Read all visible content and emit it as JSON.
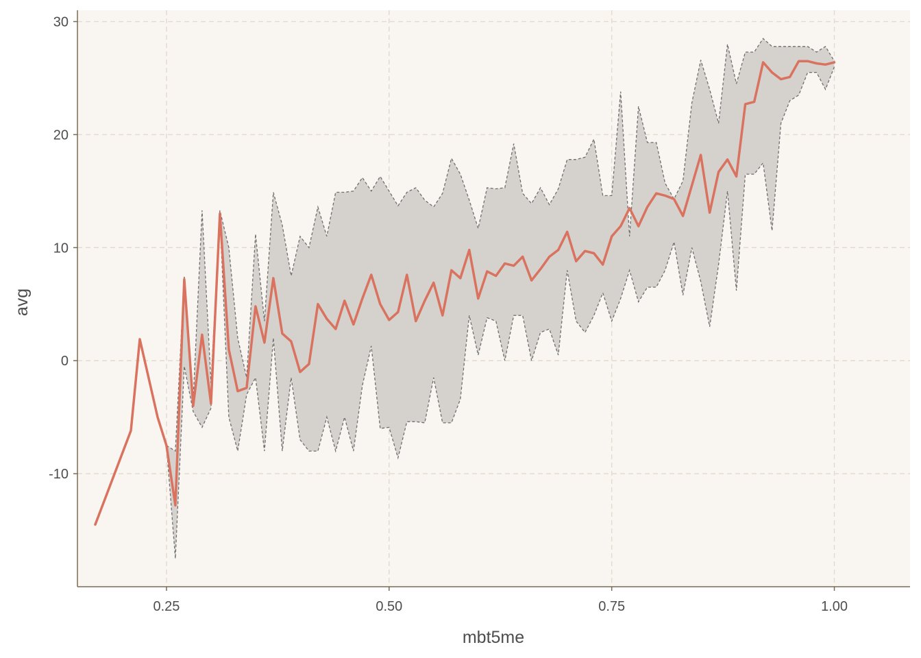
{
  "chart_data": {
    "type": "line",
    "xlabel": "mbt5me",
    "ylabel": "avg",
    "xlim": [
      0.15,
      1.085
    ],
    "ylim": [
      -20,
      31
    ],
    "x_ticks": [
      0.25,
      0.5,
      0.75,
      1.0
    ],
    "x_tick_labels": [
      "0.25",
      "0.50",
      "0.75",
      "1.00"
    ],
    "y_ticks": [
      -10,
      0,
      10,
      20,
      30
    ],
    "y_tick_labels": [
      "-10",
      "0",
      "10",
      "20",
      "30"
    ],
    "grid": true,
    "colors": {
      "line": "#D9725E",
      "band_fill": "#D5D2CE",
      "band_edge": "#6E6E6E",
      "panel_bg": "#F9F6F2",
      "grid": "#E3DBD0",
      "axis": "#7A6A58"
    },
    "series": [
      {
        "x": [
          0.17,
          0.21,
          0.22,
          0.24,
          0.25,
          0.26,
          0.27,
          0.28,
          0.29,
          0.3,
          0.31,
          0.32,
          0.33,
          0.34,
          0.35,
          0.36,
          0.37,
          0.38,
          0.39,
          0.4,
          0.41,
          0.42,
          0.43,
          0.44,
          0.45,
          0.46,
          0.47,
          0.48,
          0.49,
          0.5,
          0.51,
          0.52,
          0.53,
          0.54,
          0.55,
          0.56,
          0.57,
          0.58,
          0.59,
          0.6,
          0.61,
          0.62,
          0.63,
          0.64,
          0.65,
          0.66,
          0.67,
          0.68,
          0.69,
          0.7,
          0.71,
          0.72,
          0.73,
          0.74,
          0.75,
          0.76,
          0.77,
          0.78,
          0.79,
          0.8,
          0.81,
          0.82,
          0.83,
          0.84,
          0.85,
          0.86,
          0.87,
          0.88,
          0.89,
          0.9,
          0.91,
          0.92,
          0.93,
          0.94,
          0.95,
          0.96,
          0.97,
          0.98,
          0.99,
          1.0
        ],
        "values": [
          -14.5,
          -6.2,
          1.9,
          -5.0,
          -7.5,
          -12.8,
          7.2,
          -4.0,
          2.3,
          -3.8,
          13.0,
          1.0,
          -2.7,
          -2.4,
          4.8,
          1.6,
          7.3,
          2.4,
          1.7,
          -1.0,
          -0.3,
          5.0,
          3.7,
          2.8,
          5.3,
          3.2,
          5.5,
          7.6,
          5.0,
          3.6,
          4.3,
          7.6,
          3.5,
          5.3,
          6.9,
          4.0,
          8.0,
          7.3,
          9.8,
          5.5,
          7.9,
          7.5,
          8.6,
          8.4,
          9.2,
          7.1,
          8.1,
          9.2,
          9.8,
          11.4,
          8.8,
          9.7,
          9.5,
          8.5,
          11.0,
          11.9,
          13.5,
          11.9,
          13.6,
          14.8,
          14.6,
          14.3,
          12.8,
          15.5,
          18.2,
          13.1,
          16.7,
          17.8,
          16.3,
          22.7,
          22.9,
          26.4,
          25.5,
          24.9,
          25.1,
          26.5,
          26.5,
          26.3,
          26.2,
          26.4
        ]
      }
    ],
    "band": {
      "x": [
        0.25,
        0.26,
        0.27,
        0.28,
        0.29,
        0.3,
        0.31,
        0.32,
        0.33,
        0.34,
        0.35,
        0.36,
        0.37,
        0.38,
        0.39,
        0.4,
        0.41,
        0.42,
        0.43,
        0.44,
        0.45,
        0.46,
        0.47,
        0.48,
        0.49,
        0.5,
        0.51,
        0.52,
        0.53,
        0.54,
        0.55,
        0.56,
        0.57,
        0.58,
        0.59,
        0.6,
        0.61,
        0.62,
        0.63,
        0.64,
        0.65,
        0.66,
        0.67,
        0.68,
        0.69,
        0.7,
        0.71,
        0.72,
        0.73,
        0.74,
        0.75,
        0.76,
        0.77,
        0.78,
        0.79,
        0.8,
        0.81,
        0.82,
        0.83,
        0.84,
        0.85,
        0.86,
        0.87,
        0.88,
        0.89,
        0.9,
        0.91,
        0.92,
        0.93,
        0.94,
        0.95,
        0.96,
        0.97,
        0.98,
        0.99,
        1.0
      ],
      "upper": [
        -7.5,
        -8.0,
        7.5,
        -3.5,
        13.3,
        -2.0,
        13.3,
        10.0,
        2.0,
        -1.5,
        11.2,
        3.5,
        14.9,
        12.0,
        7.5,
        11.0,
        10.0,
        13.6,
        11.0,
        14.9,
        14.9,
        15.0,
        16.2,
        15.0,
        16.3,
        15.0,
        13.7,
        14.9,
        15.3,
        14.2,
        13.6,
        14.8,
        17.9,
        16.5,
        14.2,
        11.7,
        15.3,
        15.2,
        15.3,
        19.2,
        14.8,
        13.9,
        15.3,
        13.8,
        15.2,
        17.8,
        17.8,
        18.0,
        19.6,
        14.6,
        14.6,
        23.8,
        11.0,
        22.5,
        19.3,
        19.3,
        15.7,
        14.3,
        15.9,
        22.8,
        26.6,
        24.0,
        21.0,
        28.0,
        24.5,
        27.3,
        27.3,
        28.5,
        27.8,
        27.8,
        27.8,
        27.8,
        27.8,
        27.3,
        27.8,
        26.5
      ],
      "lower": [
        -7.5,
        -17.5,
        -0.5,
        -4.5,
        -5.9,
        -4.2,
        12.8,
        -5.0,
        -8.0,
        -3.0,
        -1.5,
        -8.0,
        2.0,
        -8.0,
        -1.5,
        -7.0,
        -8.0,
        -8.0,
        -5.0,
        -8.0,
        -5.0,
        -8.0,
        -2.2,
        1.3,
        -6.0,
        -5.9,
        -8.6,
        -5.4,
        -5.4,
        -5.5,
        -1.5,
        -5.5,
        -5.5,
        -3.4,
        4.0,
        0.5,
        3.8,
        3.5,
        0.0,
        4.0,
        4.0,
        0.0,
        2.5,
        2.8,
        0.5,
        8.0,
        3.5,
        2.5,
        4.0,
        6.0,
        3.5,
        5.5,
        8.0,
        5.2,
        6.5,
        6.5,
        8.0,
        10.5,
        5.8,
        10.0,
        7.0,
        3.0,
        8.5,
        15.0,
        6.2,
        16.5,
        16.5,
        17.5,
        11.5,
        21.0,
        23.0,
        23.5,
        25.5,
        25.5,
        24.0,
        26.0
      ]
    }
  }
}
